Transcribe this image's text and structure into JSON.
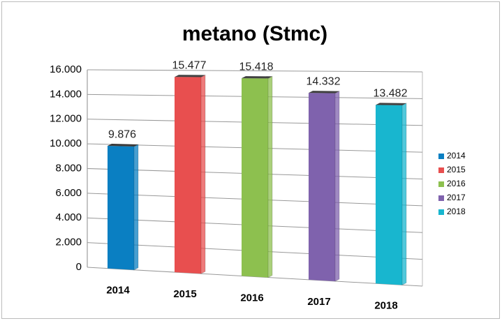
{
  "chart_data": {
    "type": "bar",
    "title": "metano (Stmc)",
    "categories": [
      "2014",
      "2015",
      "2016",
      "2017",
      "2018"
    ],
    "values": [
      9876,
      15477,
      15418,
      14332,
      13482
    ],
    "value_labels": [
      "9.876",
      "15.477",
      "15.418",
      "14.332",
      "13.482"
    ],
    "colors": [
      "#0a7fc2",
      "#e84f4f",
      "#8dc04f",
      "#7f62ad",
      "#18b6cf"
    ],
    "ylim": [
      0,
      16000
    ],
    "yticks": [
      0,
      {
        "value": 2000,
        "label": "2.000"
      },
      {
        "value": 4000,
        "label": "4.000"
      },
      {
        "value": 6000,
        "label": "6.000"
      },
      {
        "value": 8000,
        "label": "8.000"
      },
      {
        "value": 10000,
        "label": "10.000"
      },
      {
        "value": 12000,
        "label": "12.000"
      },
      {
        "value": 14000,
        "label": "14.000"
      },
      {
        "value": 16000,
        "label": "16.000"
      }
    ],
    "grid": true,
    "legend": "right"
  }
}
